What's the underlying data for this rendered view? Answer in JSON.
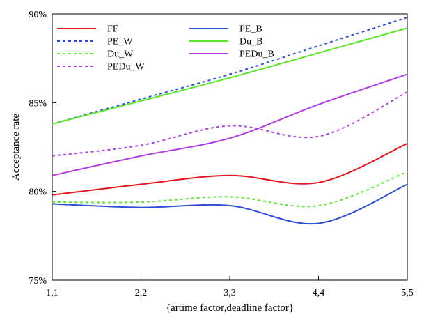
{
  "chart_data": {
    "type": "line",
    "title": "",
    "xlabel": "{artime factor,deadline factor}",
    "ylabel": "Acceptance rate",
    "categories": [
      "1,1",
      "2,2",
      "3,3",
      "4,4",
      "5,5"
    ],
    "ylim": [
      75,
      90
    ],
    "yticks": [
      75,
      80,
      85,
      90
    ],
    "ytick_labels": [
      "75%",
      "80%",
      "85%",
      "90%"
    ],
    "grid": false,
    "legend_position": "top-left",
    "series": [
      {
        "name": "FF",
        "color": "#e8141c",
        "dash": "solid",
        "values": [
          79.8,
          80.4,
          80.9,
          80.5,
          82.7
        ]
      },
      {
        "name": "PE_B",
        "color": "#2b4fd6",
        "dash": "solid",
        "values": [
          79.3,
          79.1,
          79.2,
          78.2,
          80.4
        ]
      },
      {
        "name": "PE_W",
        "color": "#2b4fd6",
        "dash": "dashed",
        "values": [
          83.8,
          85.2,
          86.6,
          88.2,
          89.8
        ]
      },
      {
        "name": "Du_B",
        "color": "#5ce62c",
        "dash": "solid",
        "values": [
          83.8,
          85.1,
          86.4,
          87.8,
          89.2
        ]
      },
      {
        "name": "Du_W",
        "color": "#5ce62c",
        "dash": "dashed",
        "values": [
          79.4,
          79.4,
          79.7,
          79.2,
          81.1
        ]
      },
      {
        "name": "PEDu_B",
        "color": "#b13ee0",
        "dash": "solid",
        "values": [
          80.9,
          82.0,
          83.0,
          84.9,
          86.6
        ]
      },
      {
        "name": "PEDu_W",
        "color": "#b13ee0",
        "dash": "dashed",
        "values": [
          82.0,
          82.6,
          83.7,
          83.1,
          85.6
        ]
      }
    ]
  }
}
